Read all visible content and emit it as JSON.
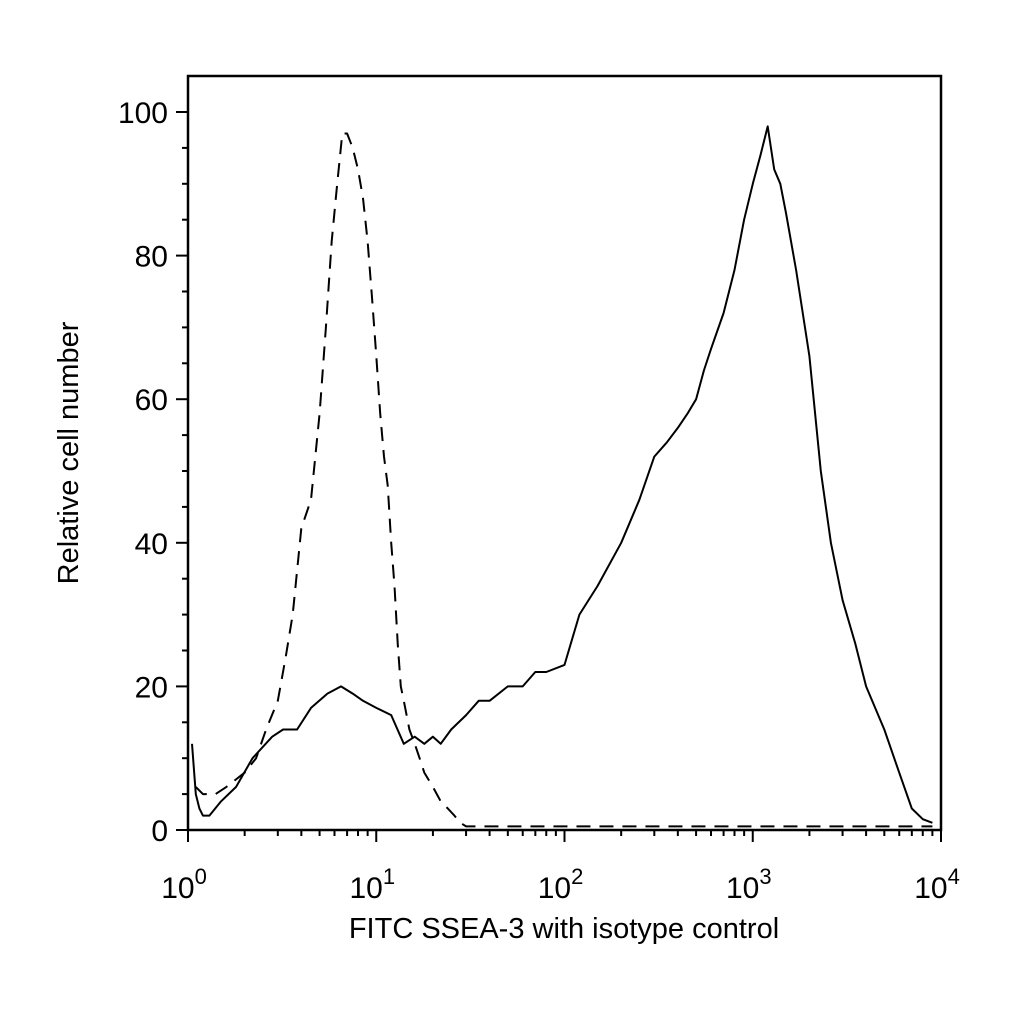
{
  "chart_data": {
    "type": "line",
    "title": "",
    "xlabel": "FITC SSEA-3 with isotype control",
    "ylabel": "Relative cell number",
    "x_scale": "log",
    "xlim": [
      1,
      10000
    ],
    "ylim": [
      0,
      105
    ],
    "x_ticks": [
      {
        "base": "10",
        "exp": "0",
        "value": 1
      },
      {
        "base": "10",
        "exp": "1",
        "value": 10
      },
      {
        "base": "10",
        "exp": "2",
        "value": 100
      },
      {
        "base": "10",
        "exp": "3",
        "value": 1000
      },
      {
        "base": "10",
        "exp": "4",
        "value": 10000
      }
    ],
    "y_ticks": [
      0,
      20,
      40,
      60,
      80,
      100
    ],
    "grid": false,
    "legend": "none",
    "series": [
      {
        "style": "dashed",
        "color": "#000000",
        "x": [
          1.1,
          1.2,
          1.4,
          1.6,
          2,
          2.3,
          2.6,
          3,
          3.3,
          3.6,
          4,
          4.5,
          5,
          5.4,
          5.8,
          6.2,
          6.6,
          7,
          7.5,
          8,
          8.5,
          9,
          9.5,
          10,
          10.5,
          11,
          11.5,
          12,
          12.5,
          13,
          13.5,
          14,
          15,
          16,
          17,
          18,
          20,
          22,
          24,
          26,
          28,
          30,
          35,
          40,
          50,
          100,
          1000,
          9000
        ],
        "y": [
          6,
          5,
          5,
          6,
          8,
          10,
          14,
          18,
          24,
          30,
          42,
          46,
          58,
          70,
          82,
          90,
          97,
          97,
          95,
          92,
          88,
          82,
          74,
          66,
          58,
          52,
          48,
          40,
          34,
          26,
          20,
          18,
          14,
          12,
          10,
          8,
          6,
          4,
          3,
          2,
          1,
          0.5,
          0.5,
          0.5,
          0.5,
          0.5,
          0.5,
          0.5
        ]
      },
      {
        "style": "solid",
        "color": "#000000",
        "x": [
          1.05,
          1.1,
          1.15,
          1.2,
          1.3,
          1.5,
          1.8,
          2.2,
          2.8,
          3.2,
          3.8,
          4.5,
          5.5,
          6.5,
          7.5,
          8.5,
          10,
          12,
          14,
          16,
          18,
          20,
          22,
          25,
          30,
          35,
          40,
          50,
          60,
          70,
          80,
          100,
          120,
          150,
          200,
          250,
          300,
          350,
          400,
          450,
          500,
          550,
          600,
          700,
          800,
          900,
          1000,
          1100,
          1200,
          1300,
          1400,
          1500,
          1700,
          2000,
          2300,
          2600,
          3000,
          3500,
          4000,
          5000,
          6000,
          7000,
          8000,
          9000
        ],
        "y": [
          12,
          5,
          3,
          2,
          2,
          4,
          6,
          10,
          13,
          14,
          14,
          17,
          19,
          20,
          19,
          18,
          17,
          16,
          12,
          13,
          12,
          13,
          12,
          14,
          16,
          18,
          18,
          20,
          20,
          22,
          22,
          23,
          30,
          34,
          40,
          46,
          52,
          54,
          56,
          58,
          60,
          64,
          67,
          72,
          78,
          85,
          90,
          94,
          98,
          92,
          90,
          86,
          78,
          66,
          50,
          40,
          32,
          26,
          20,
          14,
          8,
          3,
          1.5,
          1
        ]
      }
    ]
  }
}
